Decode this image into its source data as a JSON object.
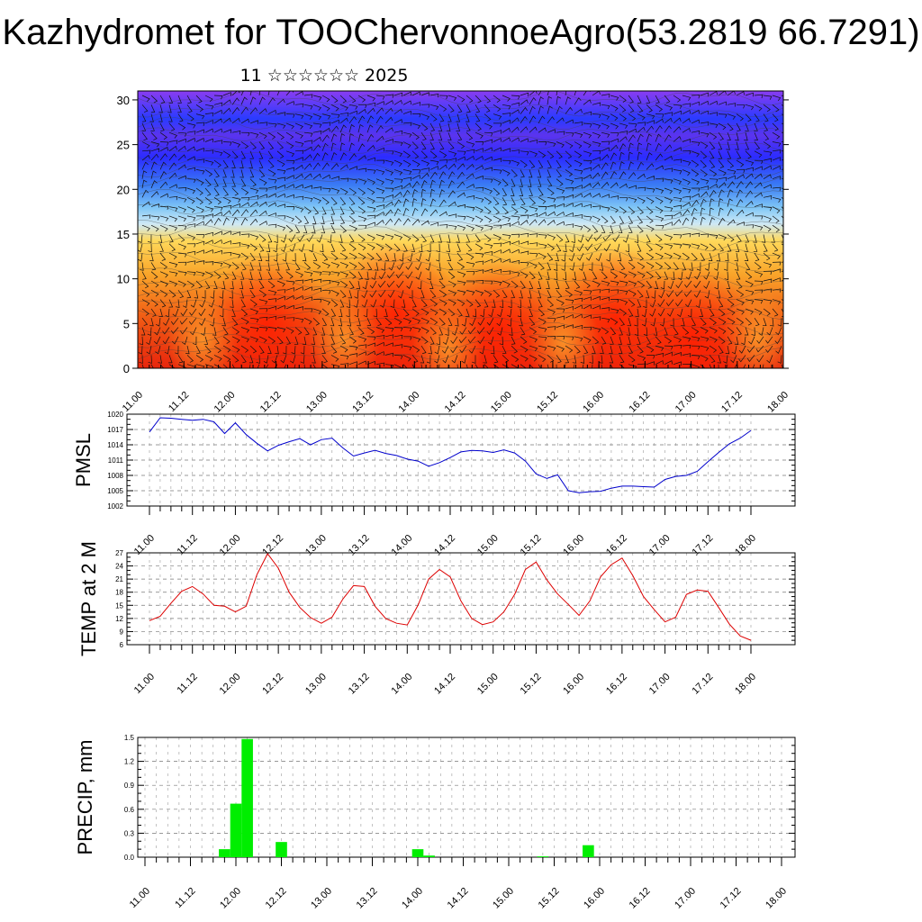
{
  "title": "Kazhydromet for TOOChervonnoeAgro(53.2819 66.7291)",
  "subtitle": "11 ☆☆☆☆☆☆ 2025",
  "chart_data": [
    {
      "type": "heatmap",
      "id": "cross-section",
      "ylim": [
        0,
        31
      ],
      "yticks": [
        0,
        5,
        10,
        15,
        20,
        25,
        30
      ],
      "xticks": [
        "11.00",
        "11.12",
        "12.00",
        "12.12",
        "13.00",
        "13.12",
        "14.00",
        "14.12",
        "15.00",
        "15.12",
        "16.00",
        "16.12",
        "17.00",
        "17.12",
        "18.00"
      ],
      "colors": {
        "low": "#e8250c",
        "mid": "#ffd24a",
        "cool": "#9fd8ff",
        "cold": "#2b2cff",
        "top": "#8a3cf0"
      }
    },
    {
      "type": "line",
      "id": "pmsl",
      "ylabel": "PMSL",
      "ylim": [
        1002,
        1020
      ],
      "yticks": [
        1002,
        1005,
        1008,
        1011,
        1014,
        1017,
        1020
      ],
      "xticks": [
        "11.00",
        "11.12",
        "12.00",
        "12.12",
        "13.00",
        "13.12",
        "14.00",
        "14.12",
        "15.00",
        "15.12",
        "16.00",
        "16.12",
        "17.00",
        "17.12",
        "18.00"
      ],
      "color": "#0000cc",
      "x": [
        0,
        3,
        6,
        9,
        12,
        15,
        18,
        21,
        24,
        27,
        30,
        33,
        36,
        39,
        42,
        45,
        48,
        51,
        54,
        57,
        60,
        63,
        66,
        69,
        72,
        75,
        78,
        81,
        84,
        87,
        90,
        93,
        96,
        99,
        102,
        105,
        108,
        111,
        114,
        117,
        120,
        123,
        126,
        129,
        132,
        135,
        138,
        141,
        144,
        147,
        150,
        153,
        156,
        159,
        162,
        165,
        168
      ],
      "values": [
        1016.5,
        1019.3,
        1019.2,
        1019.0,
        1018.8,
        1019.0,
        1018.5,
        1016.2,
        1018.3,
        1016.0,
        1014.3,
        1012.8,
        1013.9,
        1014.6,
        1015.2,
        1014.0,
        1015.0,
        1015.3,
        1013.4,
        1011.8,
        1012.4,
        1012.9,
        1012.3,
        1011.9,
        1011.2,
        1010.8,
        1009.8,
        1010.5,
        1011.5,
        1012.6,
        1012.9,
        1012.8,
        1012.5,
        1013.0,
        1012.4,
        1010.8,
        1008.3,
        1007.4,
        1008.1,
        1005.0,
        1004.6,
        1004.8,
        1004.9,
        1005.5,
        1005.9,
        1005.9,
        1005.8,
        1005.7,
        1007.2,
        1007.8,
        1008.0,
        1008.8,
        1010.7,
        1012.5,
        1014.2,
        1015.3,
        1016.8
      ]
    },
    {
      "type": "line",
      "id": "temp2m",
      "ylabel": "TEMP at 2 M",
      "ylim": [
        6,
        27
      ],
      "yticks": [
        6,
        9,
        12,
        15,
        18,
        21,
        24,
        27
      ],
      "xticks": [
        "11.00",
        "11.12",
        "12.00",
        "12.12",
        "13.00",
        "13.12",
        "14.00",
        "14.12",
        "15.00",
        "15.12",
        "16.00",
        "16.12",
        "17.00",
        "17.12",
        "18.00"
      ],
      "color": "#dd0000",
      "x": [
        0,
        3,
        6,
        9,
        12,
        15,
        18,
        21,
        24,
        27,
        30,
        33,
        36,
        39,
        42,
        45,
        48,
        51,
        54,
        57,
        60,
        63,
        66,
        69,
        72,
        75,
        78,
        81,
        84,
        87,
        90,
        93,
        96,
        99,
        102,
        105,
        108,
        111,
        114,
        117,
        120,
        123,
        126,
        129,
        132,
        135,
        138,
        141,
        144,
        147,
        150,
        153,
        156,
        159,
        162,
        165,
        168
      ],
      "values": [
        11.5,
        12.5,
        15.5,
        18.2,
        19.3,
        17.6,
        15.0,
        14.8,
        13.5,
        14.8,
        22.0,
        26.8,
        23.5,
        18.0,
        14.5,
        12.2,
        10.9,
        12.3,
        16.4,
        19.5,
        19.3,
        14.8,
        12.0,
        10.9,
        10.5,
        15.0,
        21.0,
        23.2,
        21.5,
        16.0,
        12.0,
        10.6,
        11.2,
        13.5,
        17.5,
        23.2,
        24.9,
        20.8,
        17.6,
        15.2,
        12.7,
        16.0,
        21.5,
        24.3,
        25.8,
        21.8,
        17.0,
        14.0,
        11.2,
        12.3,
        17.5,
        18.5,
        18.2,
        14.5,
        10.7,
        8.0,
        7.0
      ]
    },
    {
      "type": "bar",
      "id": "precip",
      "ylabel": "PRECIP, mm",
      "ylim": [
        0,
        1.5
      ],
      "yticks": [
        "0.0",
        "0.3",
        "0.6",
        "0.9",
        "1.2",
        "1.5"
      ],
      "xticks": [
        "11.00",
        "11.12",
        "12.00",
        "12.12",
        "13.00",
        "13.12",
        "14.00",
        "14.12",
        "15.00",
        "15.12",
        "16.00",
        "16.12",
        "17.00",
        "17.12",
        "18.00"
      ],
      "color": "#00ee00",
      "x": [
        21,
        24,
        27,
        36,
        72,
        75,
        105,
        117
      ],
      "values": [
        0.1,
        0.67,
        1.48,
        0.19,
        0.1,
        0.02,
        0.01,
        0.15
      ]
    }
  ]
}
